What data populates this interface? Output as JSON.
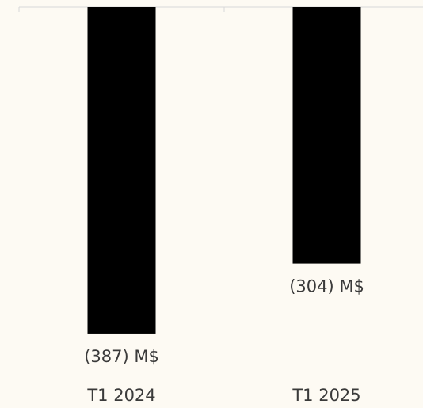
{
  "chart_data": {
    "type": "bar",
    "categories": [
      "T1 2024",
      "T1 2025"
    ],
    "values": [
      -387,
      -304
    ],
    "value_labels": [
      "(387) M$",
      "(304) M$"
    ],
    "color": "#000000",
    "ylim": [
      -450,
      0
    ]
  }
}
